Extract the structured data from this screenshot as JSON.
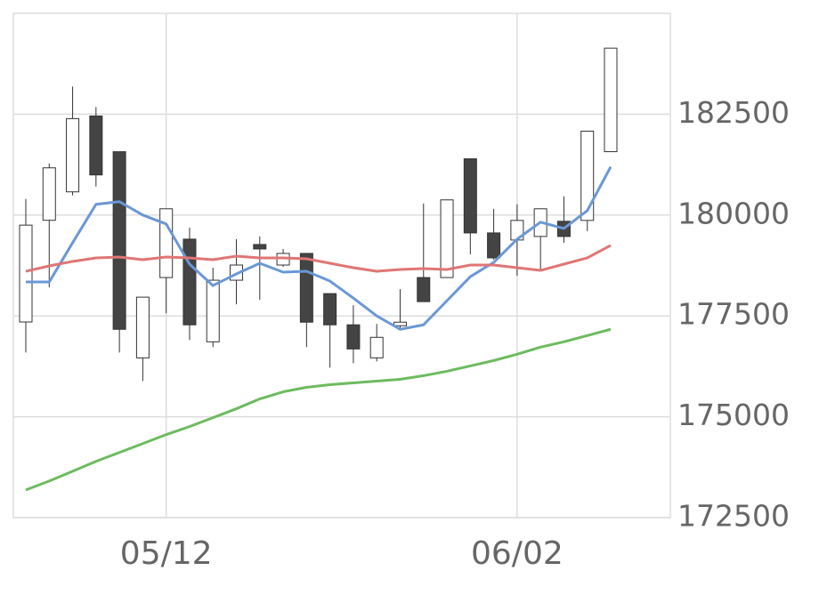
{
  "chart_data": {
    "type": "candlestick",
    "categories": [
      null,
      null,
      null,
      null,
      null,
      null,
      "05/12",
      null,
      null,
      null,
      null,
      null,
      null,
      null,
      null,
      null,
      null,
      null,
      null,
      null,
      null,
      "06/02",
      null,
      null,
      null,
      null
    ],
    "open": [
      177350,
      179870,
      180575,
      182456,
      181570,
      176460,
      178451,
      179403,
      176858,
      178385,
      179270,
      178761,
      179049,
      178053,
      177279,
      176460,
      177257,
      178451,
      178451,
      181394,
      179557,
      179381,
      179469,
      179845,
      179867,
      181571
    ],
    "high": [
      180398,
      181283,
      183185,
      182677,
      181570,
      177965,
      180155,
      179690,
      178695,
      179403,
      179469,
      179159,
      179049,
      178053,
      177765,
      177301,
      178163,
      180288,
      180376,
      181394,
      180155,
      180266,
      180155,
      180465,
      182080,
      184137
    ],
    "low": [
      176593,
      178208,
      180487,
      180708,
      176593,
      175885,
      177566,
      176903,
      176726,
      177788,
      177898,
      178717,
      176726,
      176217,
      176328,
      176372,
      177168,
      177854,
      178451,
      179027,
      178894,
      178496,
      178628,
      179314,
      179602,
      181571
    ],
    "close": [
      179750,
      181170,
      182390,
      180995,
      177168,
      177965,
      180155,
      177279,
      178385,
      178761,
      179159,
      179049,
      177345,
      177279,
      176681,
      176969,
      177345,
      177854,
      180376,
      179557,
      178938,
      179867,
      180155,
      179469,
      182080,
      184137
    ],
    "up_color": "#ffffff",
    "down_color": "#444444",
    "edge_color": "#333333",
    "series": [
      {
        "color": "#6a98d6",
        "values": [
          178341,
          178341,
          179314,
          180266,
          180332,
          180000,
          179779,
          178784,
          178252,
          178540,
          178805,
          178584,
          178606,
          178363,
          177942,
          177500,
          177168,
          177279,
          177876,
          178473,
          178827,
          179403,
          179823,
          179668,
          180111,
          181195
        ]
      },
      {
        "color": "#e07575",
        "values": [
          178606,
          178739,
          178850,
          178938,
          178960,
          178894,
          178960,
          178938,
          178894,
          178982,
          178938,
          178938,
          178916,
          178805,
          178695,
          178606,
          178650,
          178673,
          178650,
          178761,
          178761,
          178695,
          178628,
          178783,
          178938,
          179248
        ]
      },
      {
        "color": "#6dbb5f",
        "values": [
          173186,
          173407,
          173650,
          173894,
          174115,
          174336,
          174558,
          174757,
          174978,
          175199,
          175442,
          175619,
          175730,
          175796,
          175841,
          175885,
          175929,
          176018,
          176128,
          176261,
          176394,
          176549,
          176726,
          176858,
          177013,
          177168
        ]
      }
    ],
    "ylim": [
      172500,
      185000
    ],
    "yticks": [
      172500,
      175000,
      177500,
      180000,
      182500
    ],
    "grid": true,
    "y_axis_side": "right"
  }
}
